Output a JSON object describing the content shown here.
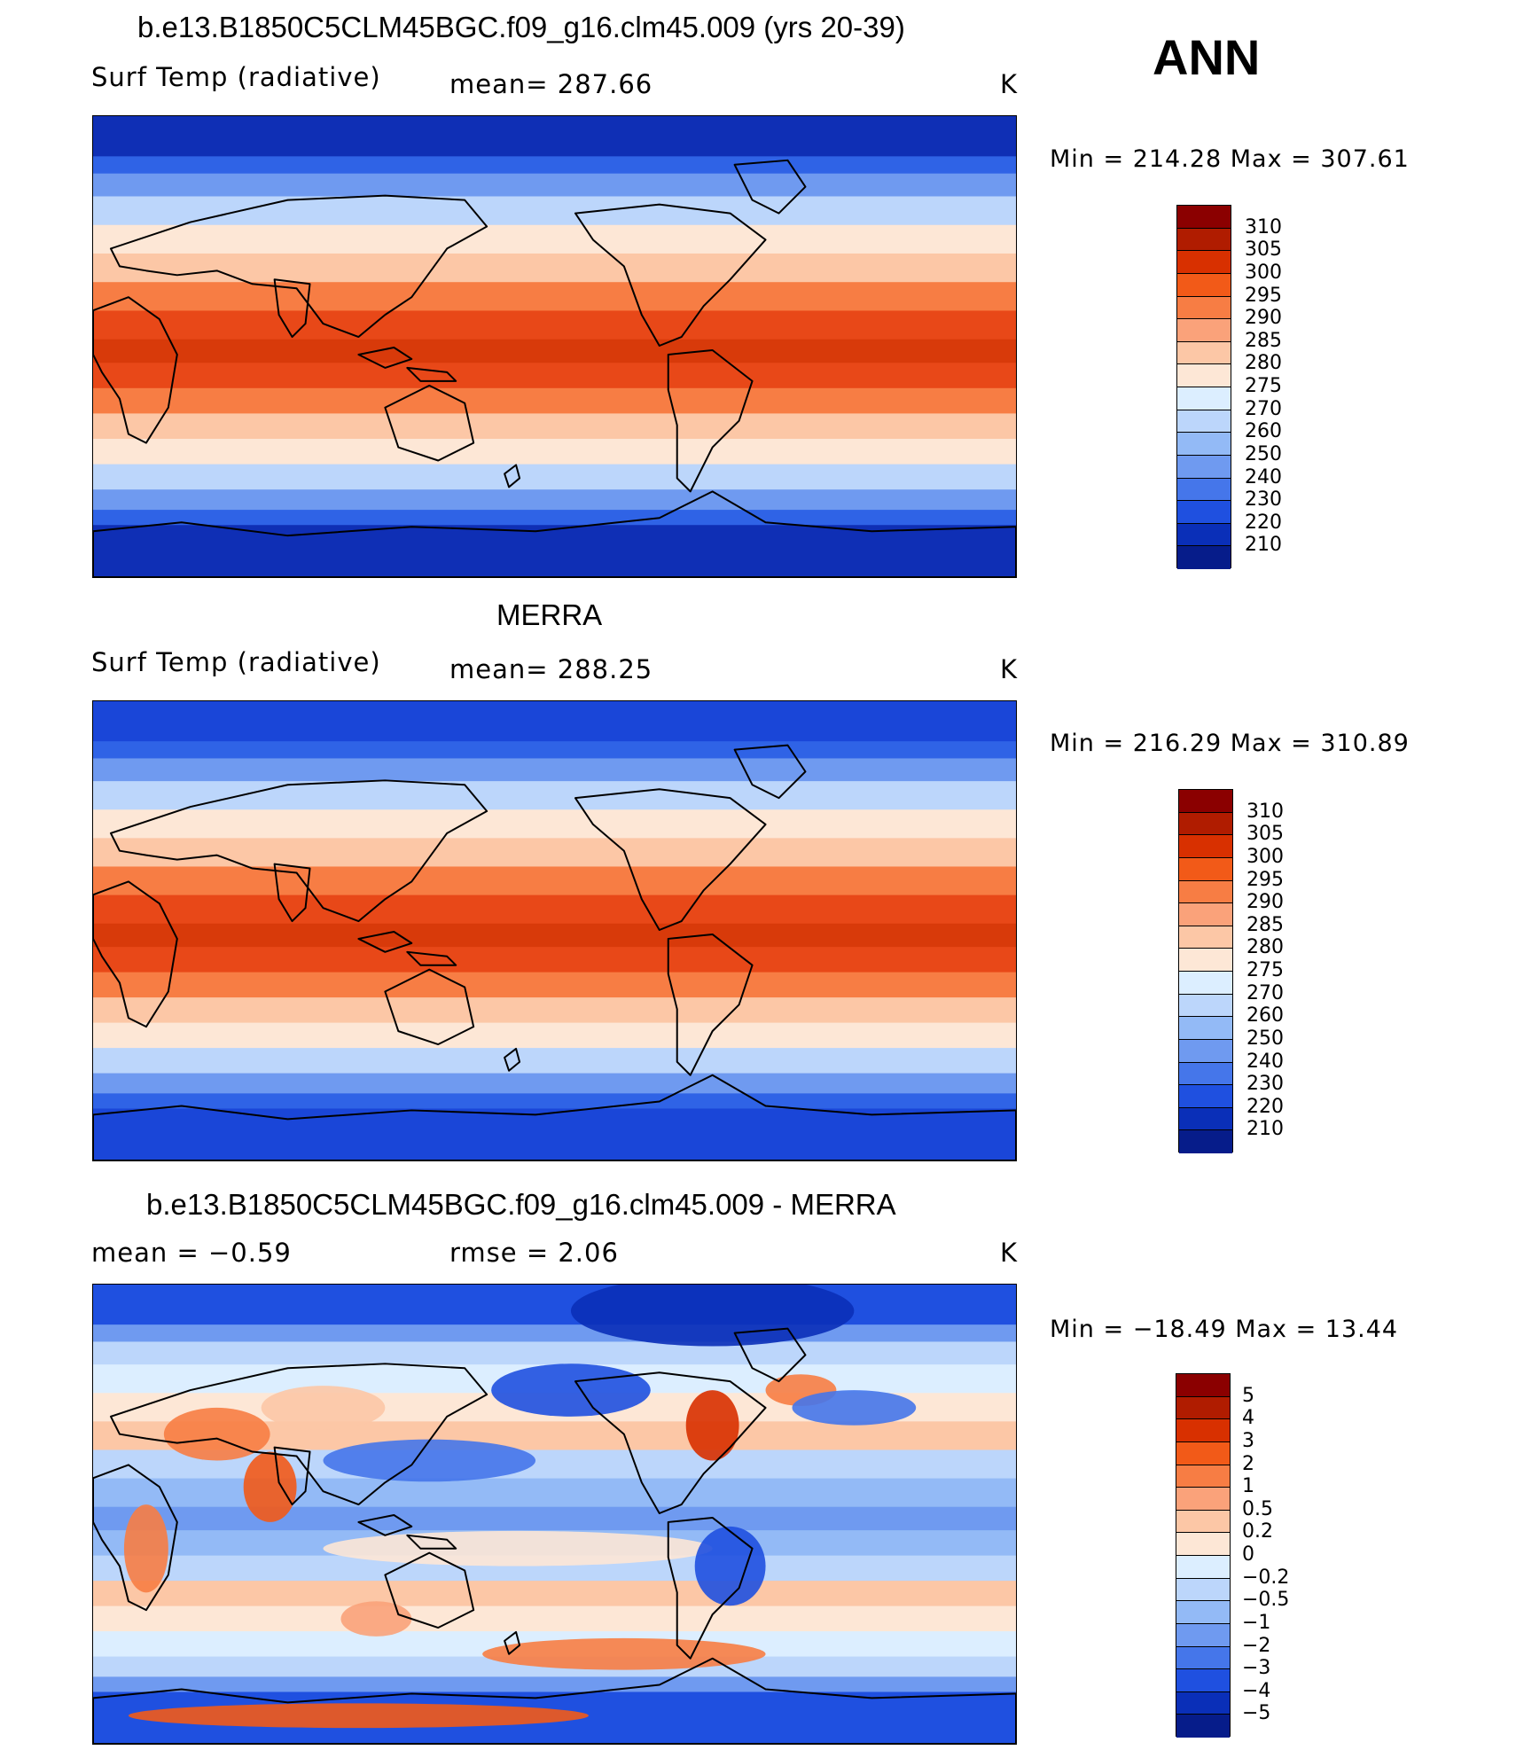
{
  "season": "ANN",
  "units": "K",
  "panels": [
    {
      "title": "b.e13.B1850C5CLM45BGC.f09_g16.clm45.009 (yrs 20-39)",
      "left_label": "Surf Temp (radiative)",
      "center_label": "mean=  287.66",
      "right_label": "K",
      "minmax": "Min = 214.28 Max = 307.61",
      "colorbar_labels": [
        "310",
        "305",
        "300",
        "295",
        "290",
        "285",
        "280",
        "275",
        "270",
        "260",
        "250",
        "240",
        "230",
        "220",
        "210"
      ],
      "colorbar_colors": [
        "#8b0000",
        "#b01c00",
        "#d83000",
        "#f25a18",
        "#f77d44",
        "#faa27a",
        "#fcc7a6",
        "#fde7d6",
        "#dceeff",
        "#bcd6fb",
        "#93baf6",
        "#6f9af0",
        "#4576ea",
        "#1f50e0",
        "#0a2fb8",
        "#061c8a"
      ],
      "map_layers": [
        "#0f2fb5",
        "#2f63e6",
        "#6f9af0",
        "#bcd6fb",
        "#fde7d6",
        "#fcc7a6",
        "#f77d44",
        "#e84818",
        "#d83a0a"
      ]
    },
    {
      "title": "MERRA",
      "left_label": "Surf Temp (radiative)",
      "center_label": "mean=  288.25",
      "right_label": "K",
      "minmax": "Min = 216.29 Max = 310.89",
      "colorbar_labels": [
        "310",
        "305",
        "300",
        "295",
        "290",
        "285",
        "280",
        "275",
        "270",
        "260",
        "250",
        "240",
        "230",
        "220",
        "210"
      ],
      "colorbar_colors": [
        "#8b0000",
        "#b01c00",
        "#d83000",
        "#f25a18",
        "#f77d44",
        "#faa27a",
        "#fcc7a6",
        "#fde7d6",
        "#dceeff",
        "#bcd6fb",
        "#93baf6",
        "#6f9af0",
        "#4576ea",
        "#1f50e0",
        "#0a2fb8",
        "#061c8a"
      ],
      "map_layers": [
        "#1a46d8",
        "#2f63e6",
        "#6f9af0",
        "#bcd6fb",
        "#fde7d6",
        "#fcc7a6",
        "#f77d44",
        "#e84818",
        "#d83a0a"
      ]
    },
    {
      "title": "b.e13.B1850C5CLM45BGC.f09_g16.clm45.009 - MERRA",
      "left_label": "mean =   −0.59",
      "center_label": "rmse =    2.06",
      "right_label": "K",
      "minmax": "Min = −18.49 Max =  13.44",
      "colorbar_labels": [
        "5",
        "4",
        "3",
        "2",
        "1",
        "0.5",
        "0.2",
        "0",
        "−0.2",
        "−0.5",
        "−1",
        "−2",
        "−3",
        "−4",
        "−5"
      ],
      "colorbar_colors": [
        "#8b0000",
        "#b01c00",
        "#d83000",
        "#f25a18",
        "#f77d44",
        "#faa27a",
        "#fcc7a6",
        "#fde7d6",
        "#dceeff",
        "#bcd6fb",
        "#93baf6",
        "#6f9af0",
        "#4576ea",
        "#1f50e0",
        "#0a2fb8",
        "#061c8a"
      ],
      "map_layers": [
        "#1f50e0",
        "#6f9af0",
        "#bcd6fb",
        "#dceeff",
        "#fde7d6",
        "#fcc7a6",
        "#bcd6fb",
        "#93baf6",
        "#6f9af0"
      ]
    }
  ]
}
